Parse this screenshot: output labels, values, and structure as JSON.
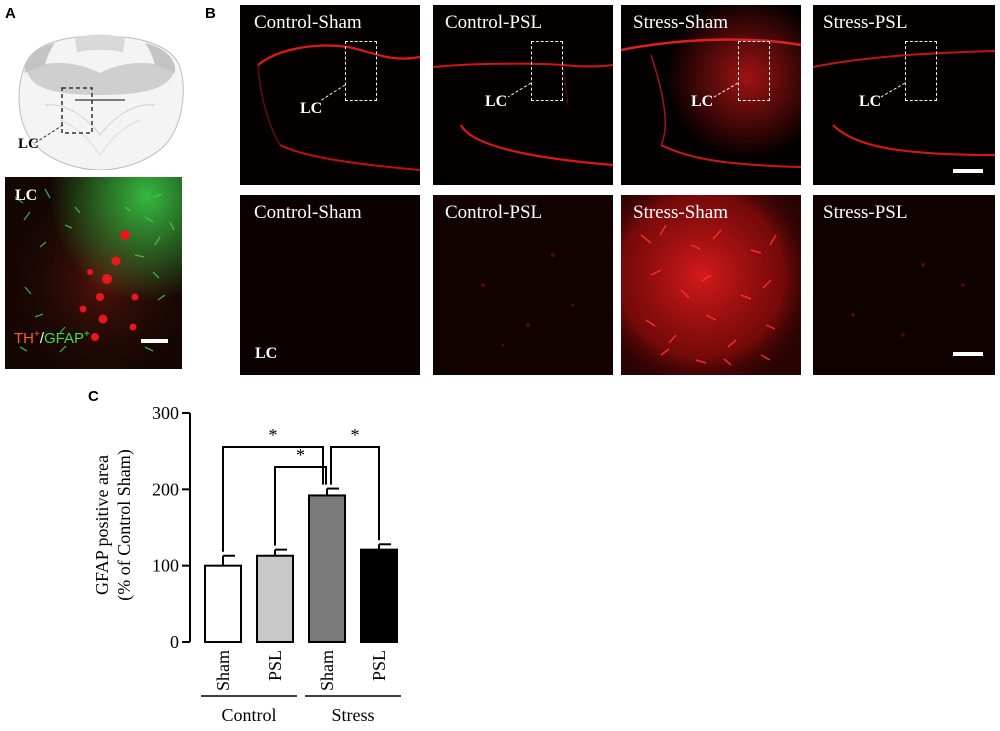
{
  "panel_labels": {
    "a": "A",
    "b": "B",
    "c": "C"
  },
  "panel_a": {
    "schematic_label": "LC",
    "image_label": "LC",
    "stain_red": "TH",
    "stain_red_sup": "+",
    "stain_sep": "/",
    "stain_green": "GFAP",
    "stain_green_sup": "+",
    "colors": {
      "red": "#ff3a1a",
      "green": "#39d44a"
    }
  },
  "panel_b": {
    "top_row": [
      {
        "title": "Control-Sham",
        "lc": "LC"
      },
      {
        "title": "Control-PSL",
        "lc": "LC"
      },
      {
        "title": "Stress-Sham",
        "lc": "LC"
      },
      {
        "title": "Stress-PSL",
        "lc": "LC"
      }
    ],
    "bottom_row": [
      {
        "title": "Control-Sham",
        "lc": "LC"
      },
      {
        "title": "Control-PSL"
      },
      {
        "title": "Stress-Sham"
      },
      {
        "title": "Stress-PSL"
      }
    ]
  },
  "chart_data": {
    "type": "bar",
    "ylabel_line1": "GFAP positive area",
    "ylabel_line2": "(% of Control Sham)",
    "ylim": [
      0,
      300
    ],
    "yticks": [
      "0",
      "100",
      "200",
      "300"
    ],
    "categories": [
      "Sham",
      "PSL",
      "Sham",
      "PSL"
    ],
    "groups": [
      {
        "label": "Control",
        "members": [
          0,
          1
        ]
      },
      {
        "label": "Stress",
        "members": [
          2,
          3
        ]
      }
    ],
    "values": [
      100,
      113,
      192,
      121
    ],
    "errors": [
      13,
      8,
      9,
      7
    ],
    "bar_colors": [
      "#ffffff",
      "#c8c8c8",
      "#7a7a7a",
      "#000000"
    ],
    "significance": [
      {
        "from": 0,
        "to": 2,
        "label": "*"
      },
      {
        "from": 1,
        "to": 2,
        "label": "*"
      },
      {
        "from": 2,
        "to": 3,
        "label": "*"
      }
    ]
  }
}
